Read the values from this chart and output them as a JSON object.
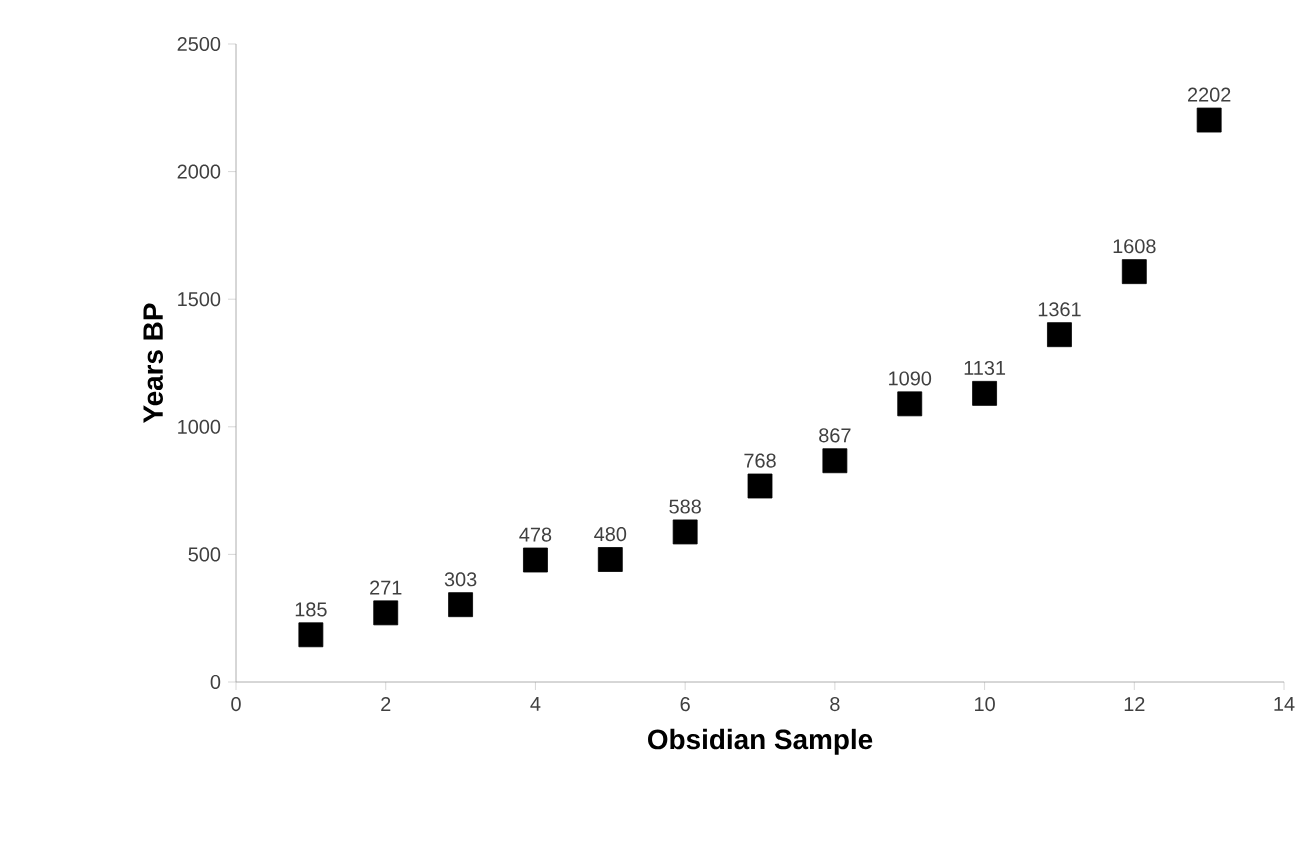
{
  "chart_data": {
    "type": "scatter",
    "xlabel": "Obsidian Sample",
    "ylabel": "Years BP",
    "x": [
      1,
      2,
      3,
      4,
      5,
      6,
      7,
      8,
      9,
      10,
      11,
      12,
      13
    ],
    "values": [
      185,
      271,
      303,
      478,
      480,
      588,
      768,
      867,
      1090,
      1131,
      1361,
      1608,
      2202
    ],
    "color": "#000000",
    "marker": "square",
    "data_labels": true,
    "xlim": [
      0,
      14
    ],
    "xticks": [
      0,
      2,
      4,
      6,
      8,
      10,
      12,
      14
    ],
    "ylim": [
      0,
      2500
    ],
    "yticks": [
      0,
      500,
      1000,
      1500,
      2000,
      2500
    ]
  }
}
